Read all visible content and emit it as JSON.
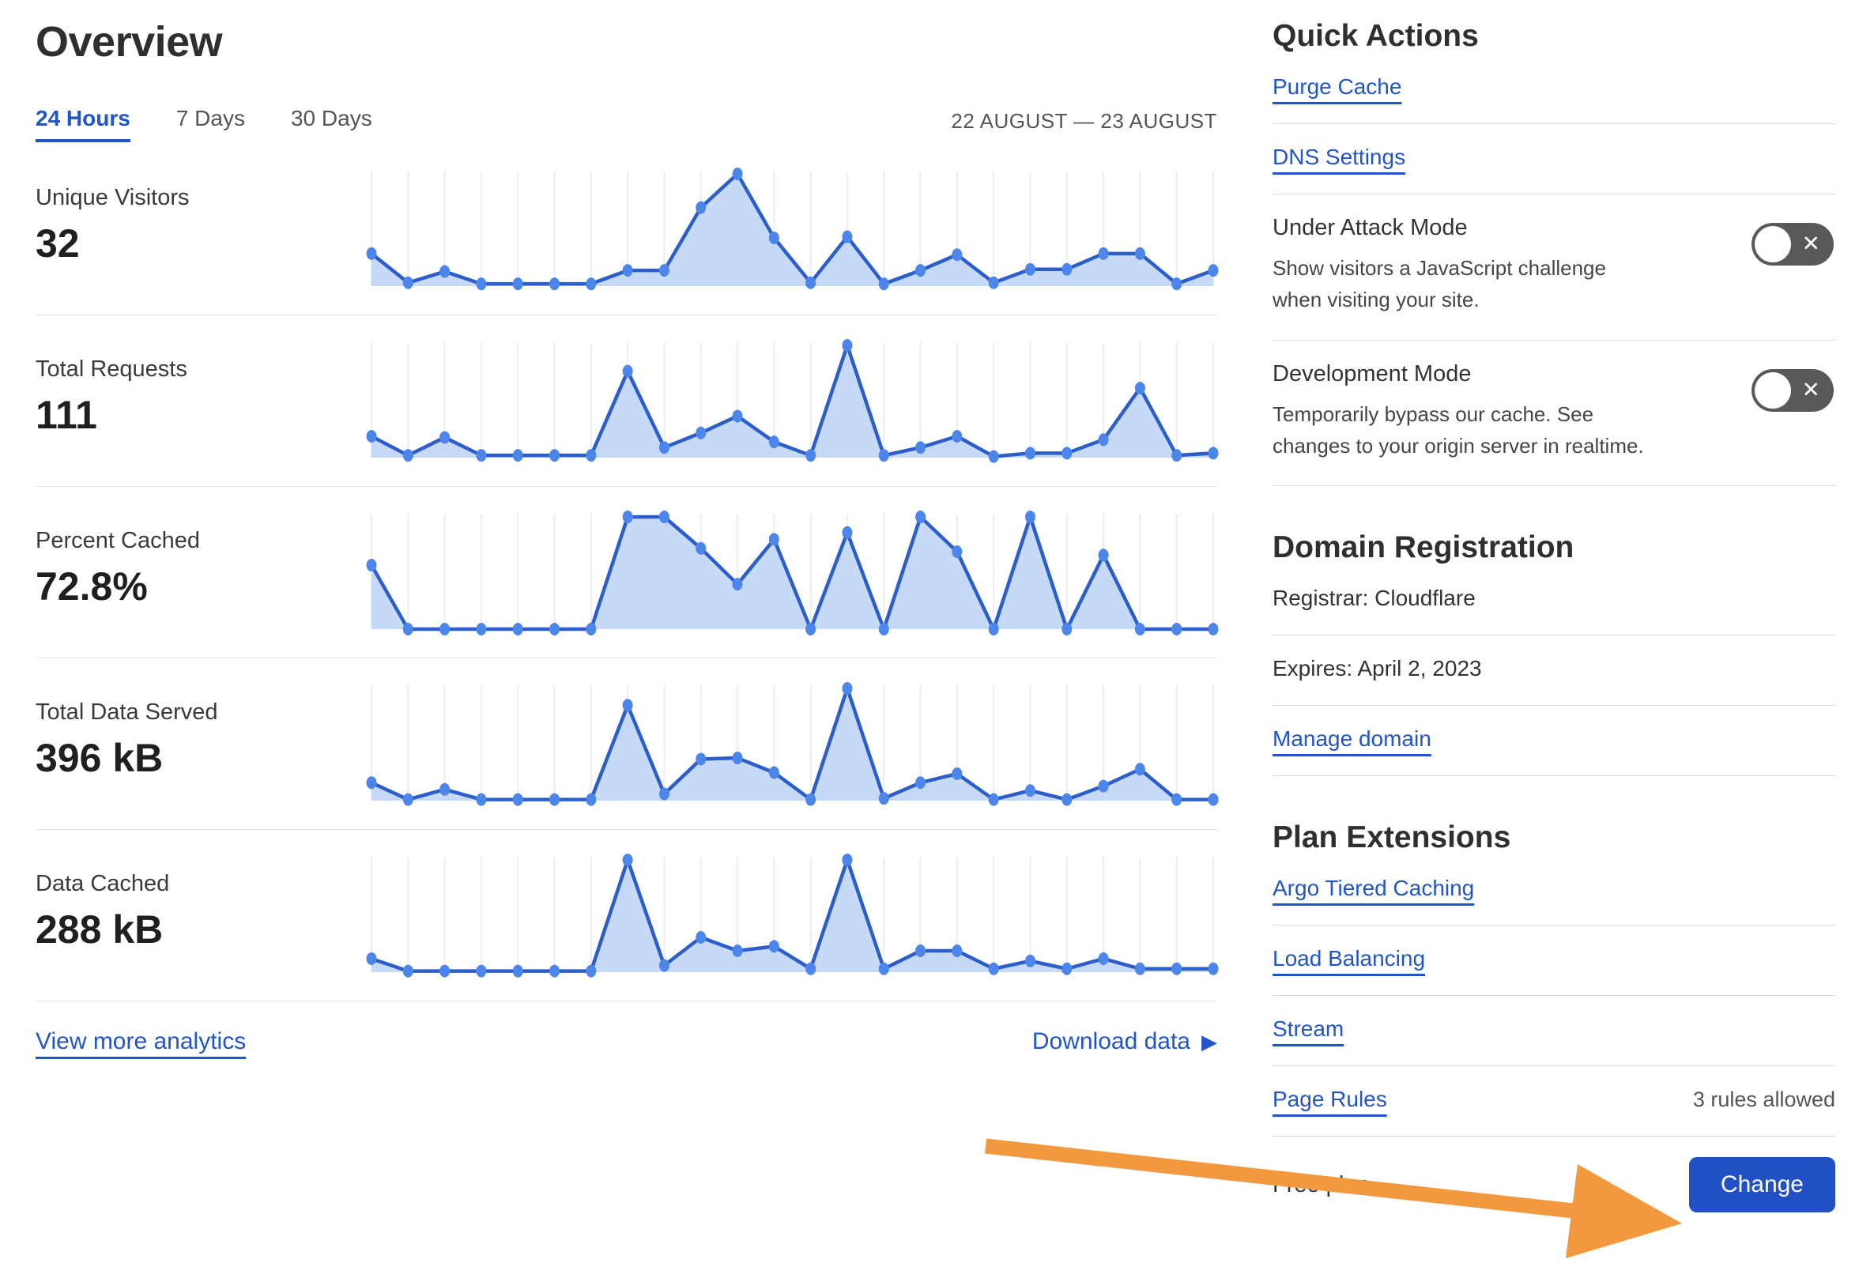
{
  "page": {
    "title": "Overview"
  },
  "tabs": [
    {
      "label": "24 Hours",
      "active": true
    },
    {
      "label": "7 Days",
      "active": false
    },
    {
      "label": "30 Days",
      "active": false
    }
  ],
  "date_range": "22 AUGUST — 23 AUGUST",
  "metrics": [
    {
      "label": "Unique Visitors",
      "value": "32"
    },
    {
      "label": "Total Requests",
      "value": "111"
    },
    {
      "label": "Percent Cached",
      "value": "72.8%"
    },
    {
      "label": "Total Data Served",
      "value": "396 kB"
    },
    {
      "label": "Data Cached",
      "value": "288 kB"
    }
  ],
  "chart_data": [
    {
      "type": "area",
      "title": "Unique Visitors",
      "summary_value": "32",
      "x_unit": "hour",
      "x_range": "24 hours (22 Aug – 23 Aug)",
      "points": 24,
      "axis_labels_visible": false,
      "grid": "vertical-only",
      "ylim": [
        0,
        10
      ],
      "values": [
        2.9,
        0.3,
        1.3,
        0.2,
        0.2,
        0.2,
        0.2,
        1.4,
        1.4,
        7.0,
        10,
        4.3,
        0.3,
        4.4,
        0.2,
        1.4,
        2.8,
        0.3,
        1.5,
        1.5,
        2.9,
        2.9,
        0.2,
        1.4
      ]
    },
    {
      "type": "area",
      "title": "Total Requests",
      "summary_value": "111",
      "x_unit": "hour",
      "x_range": "24 hours (22 Aug – 23 Aug)",
      "points": 24,
      "axis_labels_visible": false,
      "grid": "vertical-only",
      "ylim": [
        0,
        10
      ],
      "values": [
        1.9,
        0.2,
        1.8,
        0.2,
        0.2,
        0.2,
        0.2,
        7.7,
        0.9,
        2.2,
        3.7,
        1.4,
        0.2,
        10,
        0.2,
        0.9,
        1.9,
        0.1,
        0.4,
        0.4,
        1.6,
        6.2,
        0.2,
        0.4
      ]
    },
    {
      "type": "area",
      "title": "Percent Cached",
      "summary_value": "72.8%",
      "x_unit": "hour",
      "x_range": "24 hours (22 Aug – 23 Aug)",
      "points": 24,
      "axis_labels_visible": false,
      "grid": "vertical-only",
      "ylim": [
        0,
        10
      ],
      "values": [
        5.7,
        0,
        0,
        0,
        0,
        0,
        0,
        10,
        10,
        7.2,
        4.0,
        8.0,
        0,
        8.6,
        0,
        10,
        6.9,
        0,
        10,
        0,
        6.6,
        0,
        0,
        0
      ]
    },
    {
      "type": "area",
      "title": "Total Data Served",
      "summary_value": "396 kB",
      "x_unit": "hour",
      "x_range": "24 hours (22 Aug – 23 Aug)",
      "points": 24,
      "axis_labels_visible": false,
      "grid": "vertical-only",
      "ylim": [
        0,
        10
      ],
      "values": [
        1.6,
        0.1,
        1.0,
        0.1,
        0.1,
        0.1,
        0.1,
        8.5,
        0.6,
        3.7,
        3.8,
        2.5,
        0.1,
        10,
        0.2,
        1.6,
        2.4,
        0.1,
        0.9,
        0.1,
        1.3,
        2.8,
        0.1,
        0.1
      ]
    },
    {
      "type": "area",
      "title": "Data Cached",
      "summary_value": "288 kB",
      "x_unit": "hour",
      "x_range": "24 hours (22 Aug – 23 Aug)",
      "points": 24,
      "axis_labels_visible": false,
      "grid": "vertical-only",
      "ylim": [
        0,
        10
      ],
      "values": [
        1.2,
        0.1,
        0.1,
        0.1,
        0.1,
        0.1,
        0.1,
        10,
        0.6,
        3.1,
        1.9,
        2.3,
        0.3,
        10,
        0.3,
        1.9,
        1.9,
        0.3,
        1.0,
        0.3,
        1.2,
        0.3,
        0.3,
        0.3
      ]
    }
  ],
  "analytics_footer": {
    "view_more": "View more analytics",
    "download": "Download data"
  },
  "quick_actions": {
    "heading": "Quick Actions",
    "links": [
      {
        "label": "Purge Cache"
      },
      {
        "label": "DNS Settings"
      }
    ],
    "toggles": [
      {
        "title": "Under Attack Mode",
        "description": "Show visitors a JavaScript challenge when visiting your site.",
        "state": "off"
      },
      {
        "title": "Development Mode",
        "description": "Temporarily bypass our cache. See changes to your origin server in realtime.",
        "state": "off"
      }
    ]
  },
  "domain_registration": {
    "heading": "Domain Registration",
    "registrar": "Registrar: Cloudflare",
    "expires": "Expires: April 2, 2023",
    "manage_link": "Manage domain"
  },
  "plan_extensions": {
    "heading": "Plan Extensions",
    "links": [
      "Argo Tiered Caching",
      "Load Balancing",
      "Stream",
      "Page Rules"
    ],
    "page_rules_note": "3 rules allowed"
  },
  "plan_footer": {
    "plan_name": "Free plan",
    "change_button": "Change"
  },
  "icons": {
    "toggle_off_x": "✕",
    "download_play": "▶"
  },
  "colors": {
    "link_blue": "#2155c9",
    "chart_line": "#2c5ecb",
    "chart_point": "#4d86ea",
    "chart_fill": "#c6d9f7",
    "chart_grid": "#e9eef7",
    "button_blue": "#2150c4",
    "toggle_gray": "#595959",
    "arrow_orange": "#f2993f"
  }
}
